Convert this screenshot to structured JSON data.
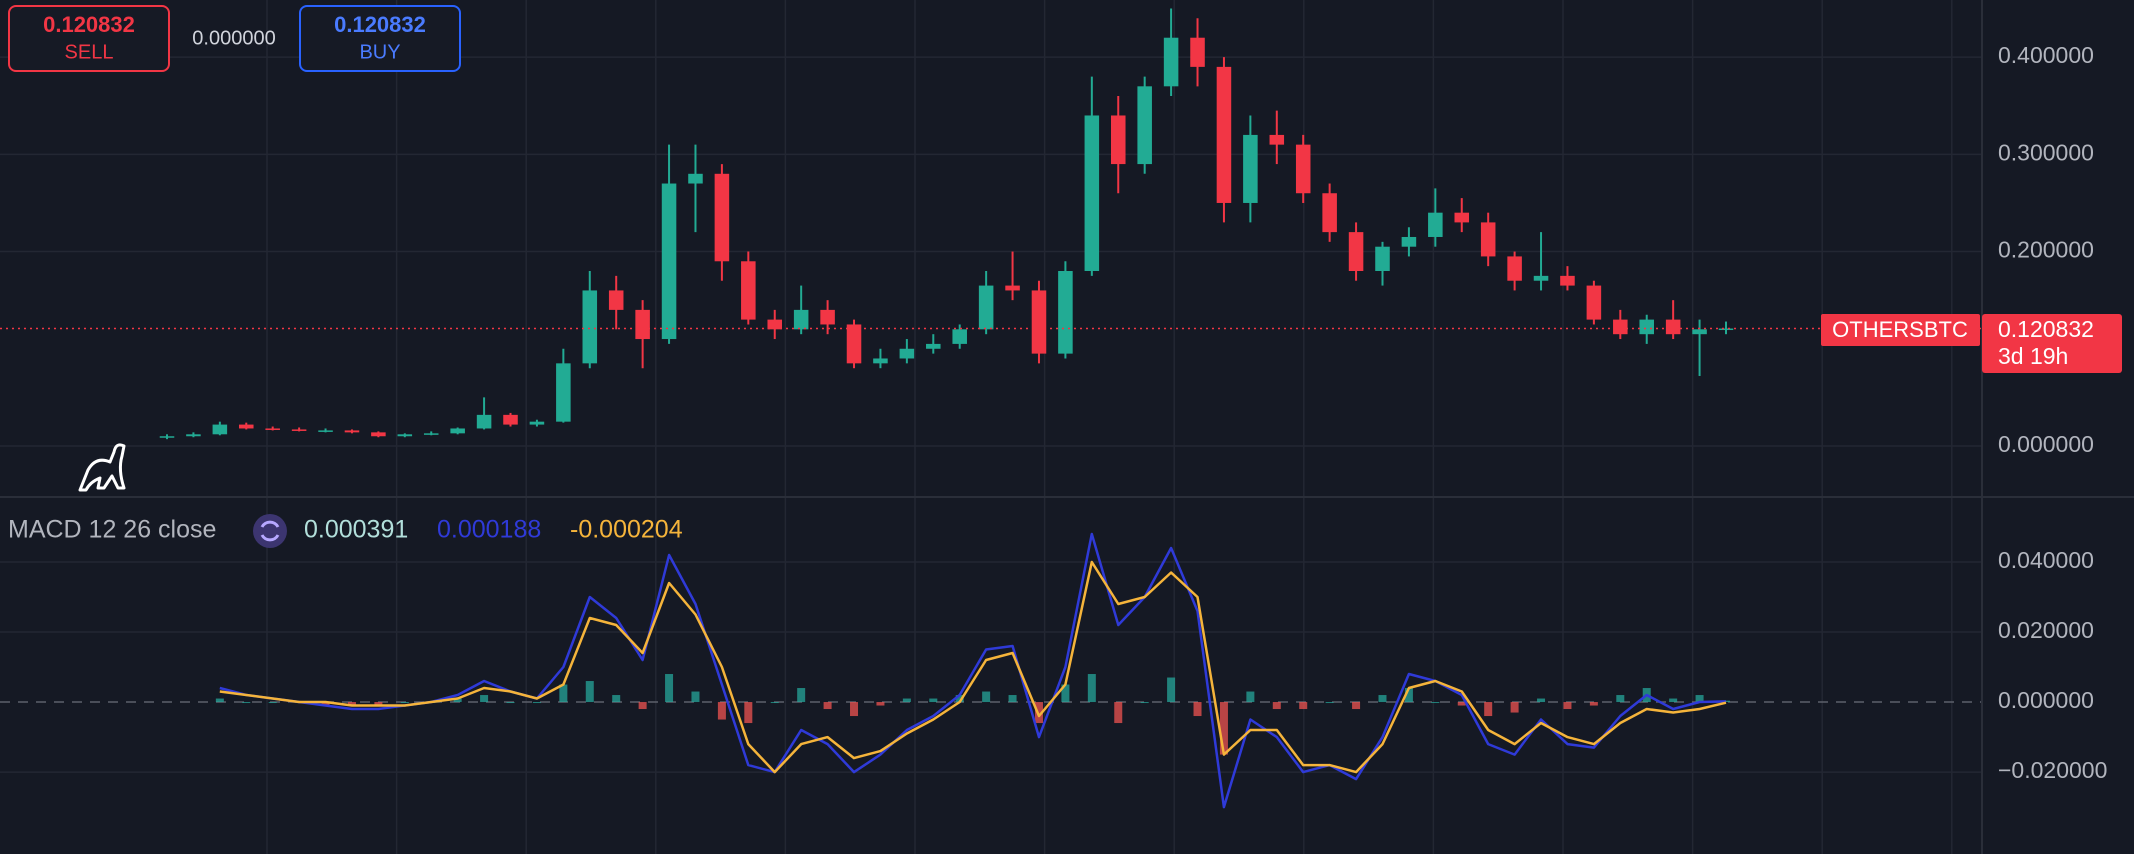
{
  "header": {
    "sell": {
      "price": "0.120832",
      "label": "SELL"
    },
    "spread": "0.000000",
    "buy": {
      "price": "0.120832",
      "label": "BUY"
    }
  },
  "chart_data": [
    {
      "type": "candlestick",
      "open": [
        0.009,
        0.01,
        0.012,
        0.022,
        0.018,
        0.017,
        0.016,
        0.016,
        0.014,
        0.01,
        0.012,
        0.013,
        0.018,
        0.032,
        0.022,
        0.025,
        0.085,
        0.16,
        0.14,
        0.11,
        0.27,
        0.28,
        0.19,
        0.13,
        0.12,
        0.14,
        0.125,
        0.085,
        0.09,
        0.1,
        0.105,
        0.12,
        0.165,
        0.16,
        0.095,
        0.18,
        0.34,
        0.29,
        0.37,
        0.42,
        0.39,
        0.25,
        0.32,
        0.31,
        0.26,
        0.22,
        0.18,
        0.205,
        0.215,
        0.24,
        0.23,
        0.195,
        0.17,
        0.175,
        0.165,
        0.13,
        0.115,
        0.13,
        0.115,
        0.12
      ],
      "high": [
        0.012,
        0.014,
        0.025,
        0.024,
        0.02,
        0.019,
        0.018,
        0.017,
        0.015,
        0.013,
        0.015,
        0.019,
        0.05,
        0.034,
        0.027,
        0.1,
        0.18,
        0.175,
        0.15,
        0.31,
        0.31,
        0.29,
        0.2,
        0.14,
        0.165,
        0.15,
        0.13,
        0.1,
        0.11,
        0.115,
        0.125,
        0.18,
        0.2,
        0.17,
        0.19,
        0.38,
        0.36,
        0.38,
        0.45,
        0.44,
        0.4,
        0.34,
        0.345,
        0.32,
        0.27,
        0.23,
        0.21,
        0.225,
        0.265,
        0.255,
        0.24,
        0.2,
        0.22,
        0.185,
        0.17,
        0.14,
        0.135,
        0.15,
        0.13,
        0.128
      ],
      "low": [
        0.007,
        0.009,
        0.011,
        0.017,
        0.016,
        0.015,
        0.014,
        0.013,
        0.009,
        0.009,
        0.011,
        0.012,
        0.017,
        0.02,
        0.02,
        0.024,
        0.08,
        0.12,
        0.08,
        0.105,
        0.22,
        0.17,
        0.125,
        0.11,
        0.115,
        0.115,
        0.08,
        0.08,
        0.085,
        0.095,
        0.1,
        0.115,
        0.15,
        0.085,
        0.09,
        0.175,
        0.26,
        0.28,
        0.36,
        0.37,
        0.23,
        0.23,
        0.29,
        0.25,
        0.21,
        0.17,
        0.165,
        0.195,
        0.205,
        0.22,
        0.185,
        0.16,
        0.16,
        0.16,
        0.125,
        0.11,
        0.105,
        0.11,
        0.072,
        0.115
      ],
      "close": [
        0.01,
        0.012,
        0.022,
        0.018,
        0.017,
        0.016,
        0.016,
        0.014,
        0.01,
        0.012,
        0.013,
        0.018,
        0.032,
        0.022,
        0.025,
        0.085,
        0.16,
        0.14,
        0.11,
        0.27,
        0.28,
        0.19,
        0.13,
        0.12,
        0.14,
        0.125,
        0.085,
        0.09,
        0.1,
        0.105,
        0.12,
        0.165,
        0.16,
        0.095,
        0.18,
        0.34,
        0.29,
        0.37,
        0.42,
        0.39,
        0.25,
        0.32,
        0.31,
        0.26,
        0.22,
        0.18,
        0.205,
        0.215,
        0.24,
        0.23,
        0.195,
        0.17,
        0.175,
        0.165,
        0.13,
        0.115,
        0.13,
        0.115,
        0.12,
        0.120832
      ],
      "up_color": "#22ab94",
      "down_color": "#f23645",
      "ylim": [
        -0.0525,
        0.4588
      ],
      "yticks": [
        {
          "value": 0.4,
          "label": "0.400000"
        },
        {
          "value": 0.3,
          "label": "0.300000"
        },
        {
          "value": 0.2,
          "label": "0.200000"
        },
        {
          "value": 0,
          "label": "0.000000"
        }
      ],
      "grid": true,
      "last_price": {
        "value": 0.120832,
        "label": "0.120832",
        "symbol": "OTHERSBTC",
        "countdown": "3d 19h",
        "color": "#f23645"
      }
    },
    {
      "type": "macd",
      "title": "MACD 12 26 close",
      "ylim": [
        -0.0434,
        0.0577
      ],
      "yticks": [
        {
          "value": 0.04,
          "label": "0.040000"
        },
        {
          "value": 0.02,
          "label": "0.020000"
        },
        {
          "value": 0,
          "label": "0.000000"
        },
        {
          "value": -0.02,
          "label": "−0.020000"
        }
      ],
      "grid": true,
      "histogram": {
        "pos_color": "#26a69a",
        "neg_color": "#ef5350",
        "label_color": "#b2dfdb",
        "last_label": "0.000391",
        "values": [
          null,
          null,
          0.001,
          0,
          0,
          0,
          -0.001,
          -0.001,
          -0.001,
          0,
          0,
          0.001,
          0.002,
          0,
          0,
          0.005,
          0.006,
          0.002,
          -0.002,
          0.008,
          0.003,
          -0.005,
          -0.006,
          0,
          0.004,
          -0.002,
          -0.004,
          -0.001,
          0.001,
          0.001,
          0.002,
          0.003,
          0.002,
          -0.006,
          0.005,
          0.008,
          -0.006,
          0,
          0.007,
          -0.004,
          -0.015,
          0.003,
          -0.002,
          -0.002,
          0,
          -0.002,
          0.002,
          0.004,
          0,
          -0.001,
          -0.004,
          -0.003,
          0.001,
          -0.002,
          -0.001,
          0.002,
          0.004,
          0.001,
          0.002,
          0.000391
        ]
      },
      "series": [
        {
          "color": "#2f3ad8",
          "last_label": "0.000188",
          "values": [
            null,
            null,
            0.004,
            0.002,
            0.001,
            0,
            -0.001,
            -0.002,
            -0.002,
            -0.001,
            0,
            0.002,
            0.006,
            0.003,
            0.001,
            0.01,
            0.03,
            0.024,
            0.012,
            0.042,
            0.028,
            0.005,
            -0.018,
            -0.02,
            -0.008,
            -0.012,
            -0.02,
            -0.015,
            -0.008,
            -0.004,
            0.002,
            0.015,
            0.016,
            -0.01,
            0.01,
            0.048,
            0.022,
            0.03,
            0.044,
            0.026,
            -0.03,
            -0.005,
            -0.01,
            -0.02,
            -0.018,
            -0.022,
            -0.01,
            0.008,
            0.006,
            0.002,
            -0.012,
            -0.015,
            -0.005,
            -0.012,
            -0.013,
            -0.004,
            0.002,
            -0.002,
            0,
            0.000188
          ]
        },
        {
          "color": "#f5b43b",
          "last_label": "-0.000204",
          "values": [
            null,
            null,
            0.003,
            0.002,
            0.001,
            0,
            0,
            -0.001,
            -0.001,
            -0.001,
            0,
            0.001,
            0.004,
            0.003,
            0.001,
            0.005,
            0.024,
            0.022,
            0.014,
            0.034,
            0.025,
            0.01,
            -0.012,
            -0.02,
            -0.012,
            -0.01,
            -0.016,
            -0.014,
            -0.009,
            -0.005,
            0,
            0.012,
            0.014,
            -0.004,
            0.005,
            0.04,
            0.028,
            0.03,
            0.037,
            0.03,
            -0.015,
            -0.008,
            -0.008,
            -0.018,
            -0.018,
            -0.02,
            -0.012,
            0.004,
            0.006,
            0.003,
            -0.008,
            -0.012,
            -0.006,
            -0.01,
            -0.012,
            -0.006,
            -0.002,
            -0.003,
            -0.002,
            -0.000204
          ]
        }
      ]
    }
  ]
}
